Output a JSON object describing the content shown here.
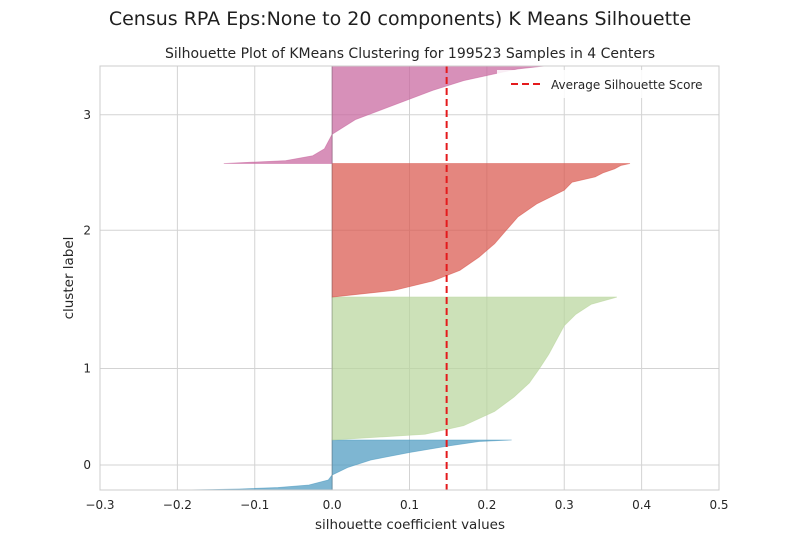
{
  "suptitle": "Census RPA Eps:None to 20 components) K Means Silhouette",
  "chart_data": {
    "type": "area",
    "title": "Silhouette Plot of KMeans Clustering for 199523 Samples in 4 Centers",
    "xlabel": "silhouette coefficient values",
    "ylabel": "cluster label",
    "xlim": [
      -0.3,
      0.5
    ],
    "xticks": [
      "−0.3",
      "−0.2",
      "−0.1",
      "0.0",
      "0.1",
      "0.2",
      "0.3",
      "0.4",
      "0.5"
    ],
    "xtick_values": [
      -0.3,
      -0.2,
      -0.1,
      0.0,
      0.1,
      0.2,
      0.3,
      0.4,
      0.5
    ],
    "ylim": [
      0,
      1
    ],
    "grid": true,
    "legend_position": "top-right",
    "average_silhouette_score": 0.148,
    "average_line_color": "#e41a1c",
    "legend_label": "Average Silhouette Score",
    "clusters": [
      {
        "label": "0",
        "color": "#4c9ac0",
        "y_range": [
          0.0,
          0.118
        ],
        "profile": [
          [
            0.0,
            -0.19
          ],
          [
            0.02,
            -0.12
          ],
          [
            0.05,
            -0.07
          ],
          [
            0.1,
            -0.03
          ],
          [
            0.2,
            -0.005
          ],
          [
            0.3,
            0.0
          ],
          [
            0.45,
            0.02
          ],
          [
            0.6,
            0.05
          ],
          [
            0.75,
            0.1
          ],
          [
            0.88,
            0.15
          ],
          [
            0.97,
            0.19
          ],
          [
            1.0,
            0.232
          ]
        ]
      },
      {
        "label": "1",
        "color": "#b9d59c",
        "y_range": [
          0.118,
          0.455
        ],
        "profile": [
          [
            0.0,
            0.0
          ],
          [
            0.04,
            0.12
          ],
          [
            0.1,
            0.17
          ],
          [
            0.2,
            0.21
          ],
          [
            0.3,
            0.235
          ],
          [
            0.4,
            0.255
          ],
          [
            0.5,
            0.268
          ],
          [
            0.6,
            0.28
          ],
          [
            0.7,
            0.29
          ],
          [
            0.8,
            0.3
          ],
          [
            0.88,
            0.315
          ],
          [
            0.95,
            0.335
          ],
          [
            1.0,
            0.368
          ]
        ]
      },
      {
        "label": "2",
        "color": "#d9574e",
        "y_range": [
          0.455,
          0.77
        ],
        "profile": [
          [
            0.0,
            0.0
          ],
          [
            0.05,
            0.08
          ],
          [
            0.12,
            0.13
          ],
          [
            0.2,
            0.165
          ],
          [
            0.3,
            0.19
          ],
          [
            0.4,
            0.21
          ],
          [
            0.5,
            0.225
          ],
          [
            0.6,
            0.24
          ],
          [
            0.7,
            0.265
          ],
          [
            0.8,
            0.3
          ],
          [
            0.86,
            0.31
          ],
          [
            0.9,
            0.34
          ],
          [
            0.93,
            0.35
          ],
          [
            0.96,
            0.365
          ],
          [
            0.985,
            0.373
          ],
          [
            1.0,
            0.385
          ]
        ]
      },
      {
        "label": "3",
        "color": "#c8659e",
        "y_range": [
          0.77,
          1.0
        ],
        "profile": [
          [
            0.0,
            -0.14
          ],
          [
            0.03,
            -0.06
          ],
          [
            0.08,
            -0.025
          ],
          [
            0.15,
            -0.01
          ],
          [
            0.3,
            0.0
          ],
          [
            0.45,
            0.03
          ],
          [
            0.6,
            0.08
          ],
          [
            0.75,
            0.13
          ],
          [
            0.85,
            0.17
          ],
          [
            0.92,
            0.21
          ],
          [
            0.97,
            0.24
          ],
          [
            1.0,
            0.275
          ]
        ]
      }
    ]
  }
}
